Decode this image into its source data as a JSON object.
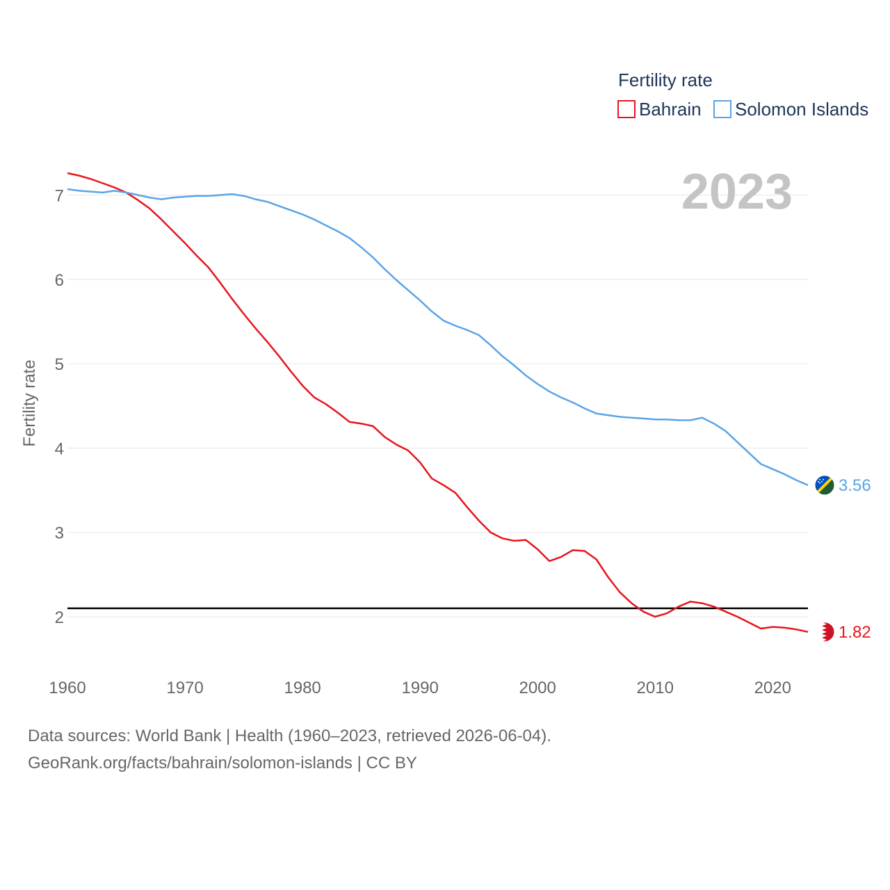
{
  "chart_data": {
    "type": "line",
    "title": "Fertility rate",
    "year_display": "2023",
    "xlabel": "",
    "ylabel": "Fertility rate",
    "xlim": [
      1960,
      2023
    ],
    "ylim": [
      1.4,
      7.5
    ],
    "x_ticks": [
      1960,
      1970,
      1980,
      1990,
      2000,
      2010,
      2020
    ],
    "y_ticks": [
      2,
      3,
      4,
      5,
      6,
      7
    ],
    "reference_line": 2.1,
    "x": [
      1960,
      1961,
      1962,
      1963,
      1964,
      1965,
      1966,
      1967,
      1968,
      1969,
      1970,
      1971,
      1972,
      1973,
      1974,
      1975,
      1976,
      1977,
      1978,
      1979,
      1980,
      1981,
      1982,
      1983,
      1984,
      1985,
      1986,
      1987,
      1988,
      1989,
      1990,
      1991,
      1992,
      1993,
      1994,
      1995,
      1996,
      1997,
      1998,
      1999,
      2000,
      2001,
      2002,
      2003,
      2004,
      2005,
      2006,
      2007,
      2008,
      2009,
      2010,
      2011,
      2012,
      2013,
      2014,
      2015,
      2016,
      2017,
      2018,
      2019,
      2020,
      2021,
      2022,
      2023
    ],
    "series": [
      {
        "name": "Bahrain",
        "color": "#e8141c",
        "end_label": "1.82",
        "flag": "bahrain-flag",
        "values": [
          7.26,
          7.23,
          7.19,
          7.14,
          7.09,
          7.03,
          6.94,
          6.84,
          6.71,
          6.57,
          6.43,
          6.28,
          6.14,
          5.96,
          5.77,
          5.59,
          5.42,
          5.26,
          5.09,
          4.91,
          4.74,
          4.6,
          4.52,
          4.42,
          4.31,
          4.29,
          4.26,
          4.13,
          4.04,
          3.97,
          3.83,
          3.64,
          3.56,
          3.47,
          3.3,
          3.14,
          3.0,
          2.93,
          2.9,
          2.91,
          2.8,
          2.66,
          2.71,
          2.79,
          2.78,
          2.68,
          2.47,
          2.29,
          2.16,
          2.06,
          2.0,
          2.04,
          2.12,
          2.18,
          2.16,
          2.12,
          2.06,
          2.0,
          1.93,
          1.86,
          1.88,
          1.87,
          1.85,
          1.82
        ]
      },
      {
        "name": "Solomon Islands",
        "color": "#5ba4e5",
        "end_label": "3.56",
        "flag": "solomon-islands-flag",
        "values": [
          7.07,
          7.05,
          7.04,
          7.03,
          7.05,
          7.03,
          7.0,
          6.97,
          6.95,
          6.97,
          6.98,
          6.99,
          6.99,
          7.0,
          7.01,
          6.99,
          6.95,
          6.92,
          6.87,
          6.82,
          6.77,
          6.71,
          6.64,
          6.57,
          6.49,
          6.38,
          6.26,
          6.12,
          5.99,
          5.87,
          5.75,
          5.62,
          5.51,
          5.45,
          5.4,
          5.34,
          5.22,
          5.09,
          4.98,
          4.86,
          4.76,
          4.67,
          4.6,
          4.54,
          4.47,
          4.41,
          4.39,
          4.37,
          4.36,
          4.35,
          4.34,
          4.34,
          4.33,
          4.33,
          4.36,
          4.29,
          4.2,
          4.07,
          3.94,
          3.81,
          3.75,
          3.69,
          3.62,
          3.56
        ]
      }
    ]
  },
  "source": {
    "line1": "Data sources: World Bank | Health (1960–2023, retrieved 2026-06-04).",
    "line2": "GeoRank.org/facts/bahrain/solomon-islands | CC BY"
  }
}
